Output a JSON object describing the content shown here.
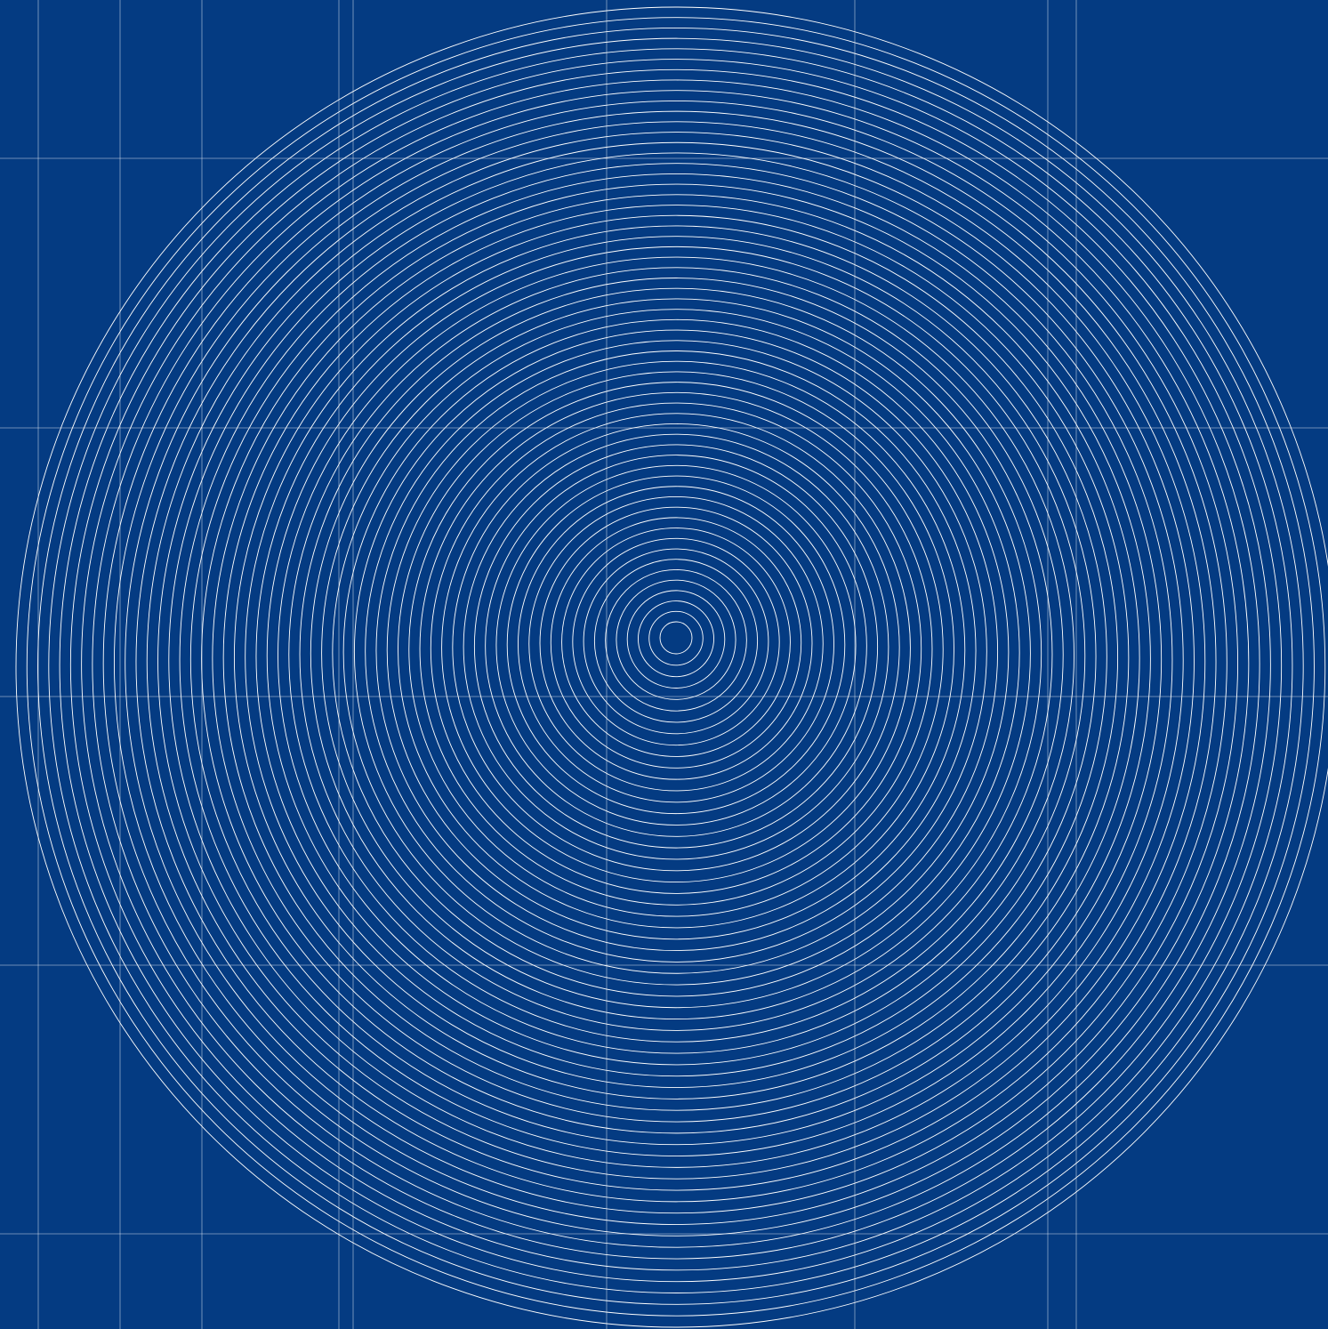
{
  "colors": {
    "background": "#043b82",
    "line": "#ffffff"
  },
  "artwork": {
    "description_icon": "concentric-tangent-circles-cone-icon",
    "circle_count": 60
  }
}
